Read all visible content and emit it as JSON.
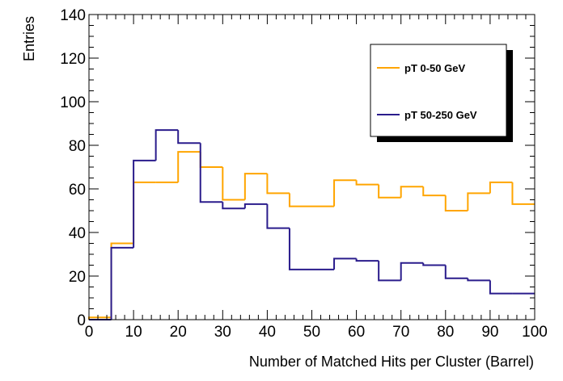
{
  "chart_data": {
    "type": "histogram",
    "title": "",
    "xlabel": "Number of Matched Hits per Cluster (Barrel)",
    "ylabel": "Entries",
    "xlim": [
      0,
      100
    ],
    "ylim": [
      0,
      140
    ],
    "bin_width": 5,
    "bin_edges": [
      0,
      5,
      10,
      15,
      20,
      25,
      30,
      35,
      40,
      45,
      50,
      55,
      60,
      65,
      70,
      75,
      80,
      85,
      90,
      95,
      100
    ],
    "x_ticks": [
      "0",
      "10",
      "20",
      "30",
      "40",
      "50",
      "60",
      "70",
      "80",
      "90",
      "100"
    ],
    "y_ticks": [
      "0",
      "20",
      "40",
      "60",
      "80",
      "100",
      "120",
      "140"
    ],
    "x_tick_values": [
      0,
      10,
      20,
      30,
      40,
      50,
      60,
      70,
      80,
      90,
      100
    ],
    "y_tick_values": [
      0,
      20,
      40,
      60,
      80,
      100,
      120,
      140
    ],
    "legend_position": "top-right",
    "grid": false,
    "series": [
      {
        "name": "pT 0-50 GeV",
        "color": "#ffa500",
        "values": [
          1,
          35,
          63,
          63,
          77,
          70,
          55,
          67,
          58,
          52,
          52,
          64,
          62,
          56,
          61,
          57,
          50,
          58,
          63,
          53
        ]
      },
      {
        "name": "pT 50-250 GeV",
        "color": "#2a1c8c",
        "values": [
          0,
          33,
          73,
          87,
          81,
          54,
          51,
          53,
          42,
          23,
          23,
          28,
          27,
          18,
          26,
          25,
          19,
          18,
          12,
          12
        ]
      }
    ]
  }
}
